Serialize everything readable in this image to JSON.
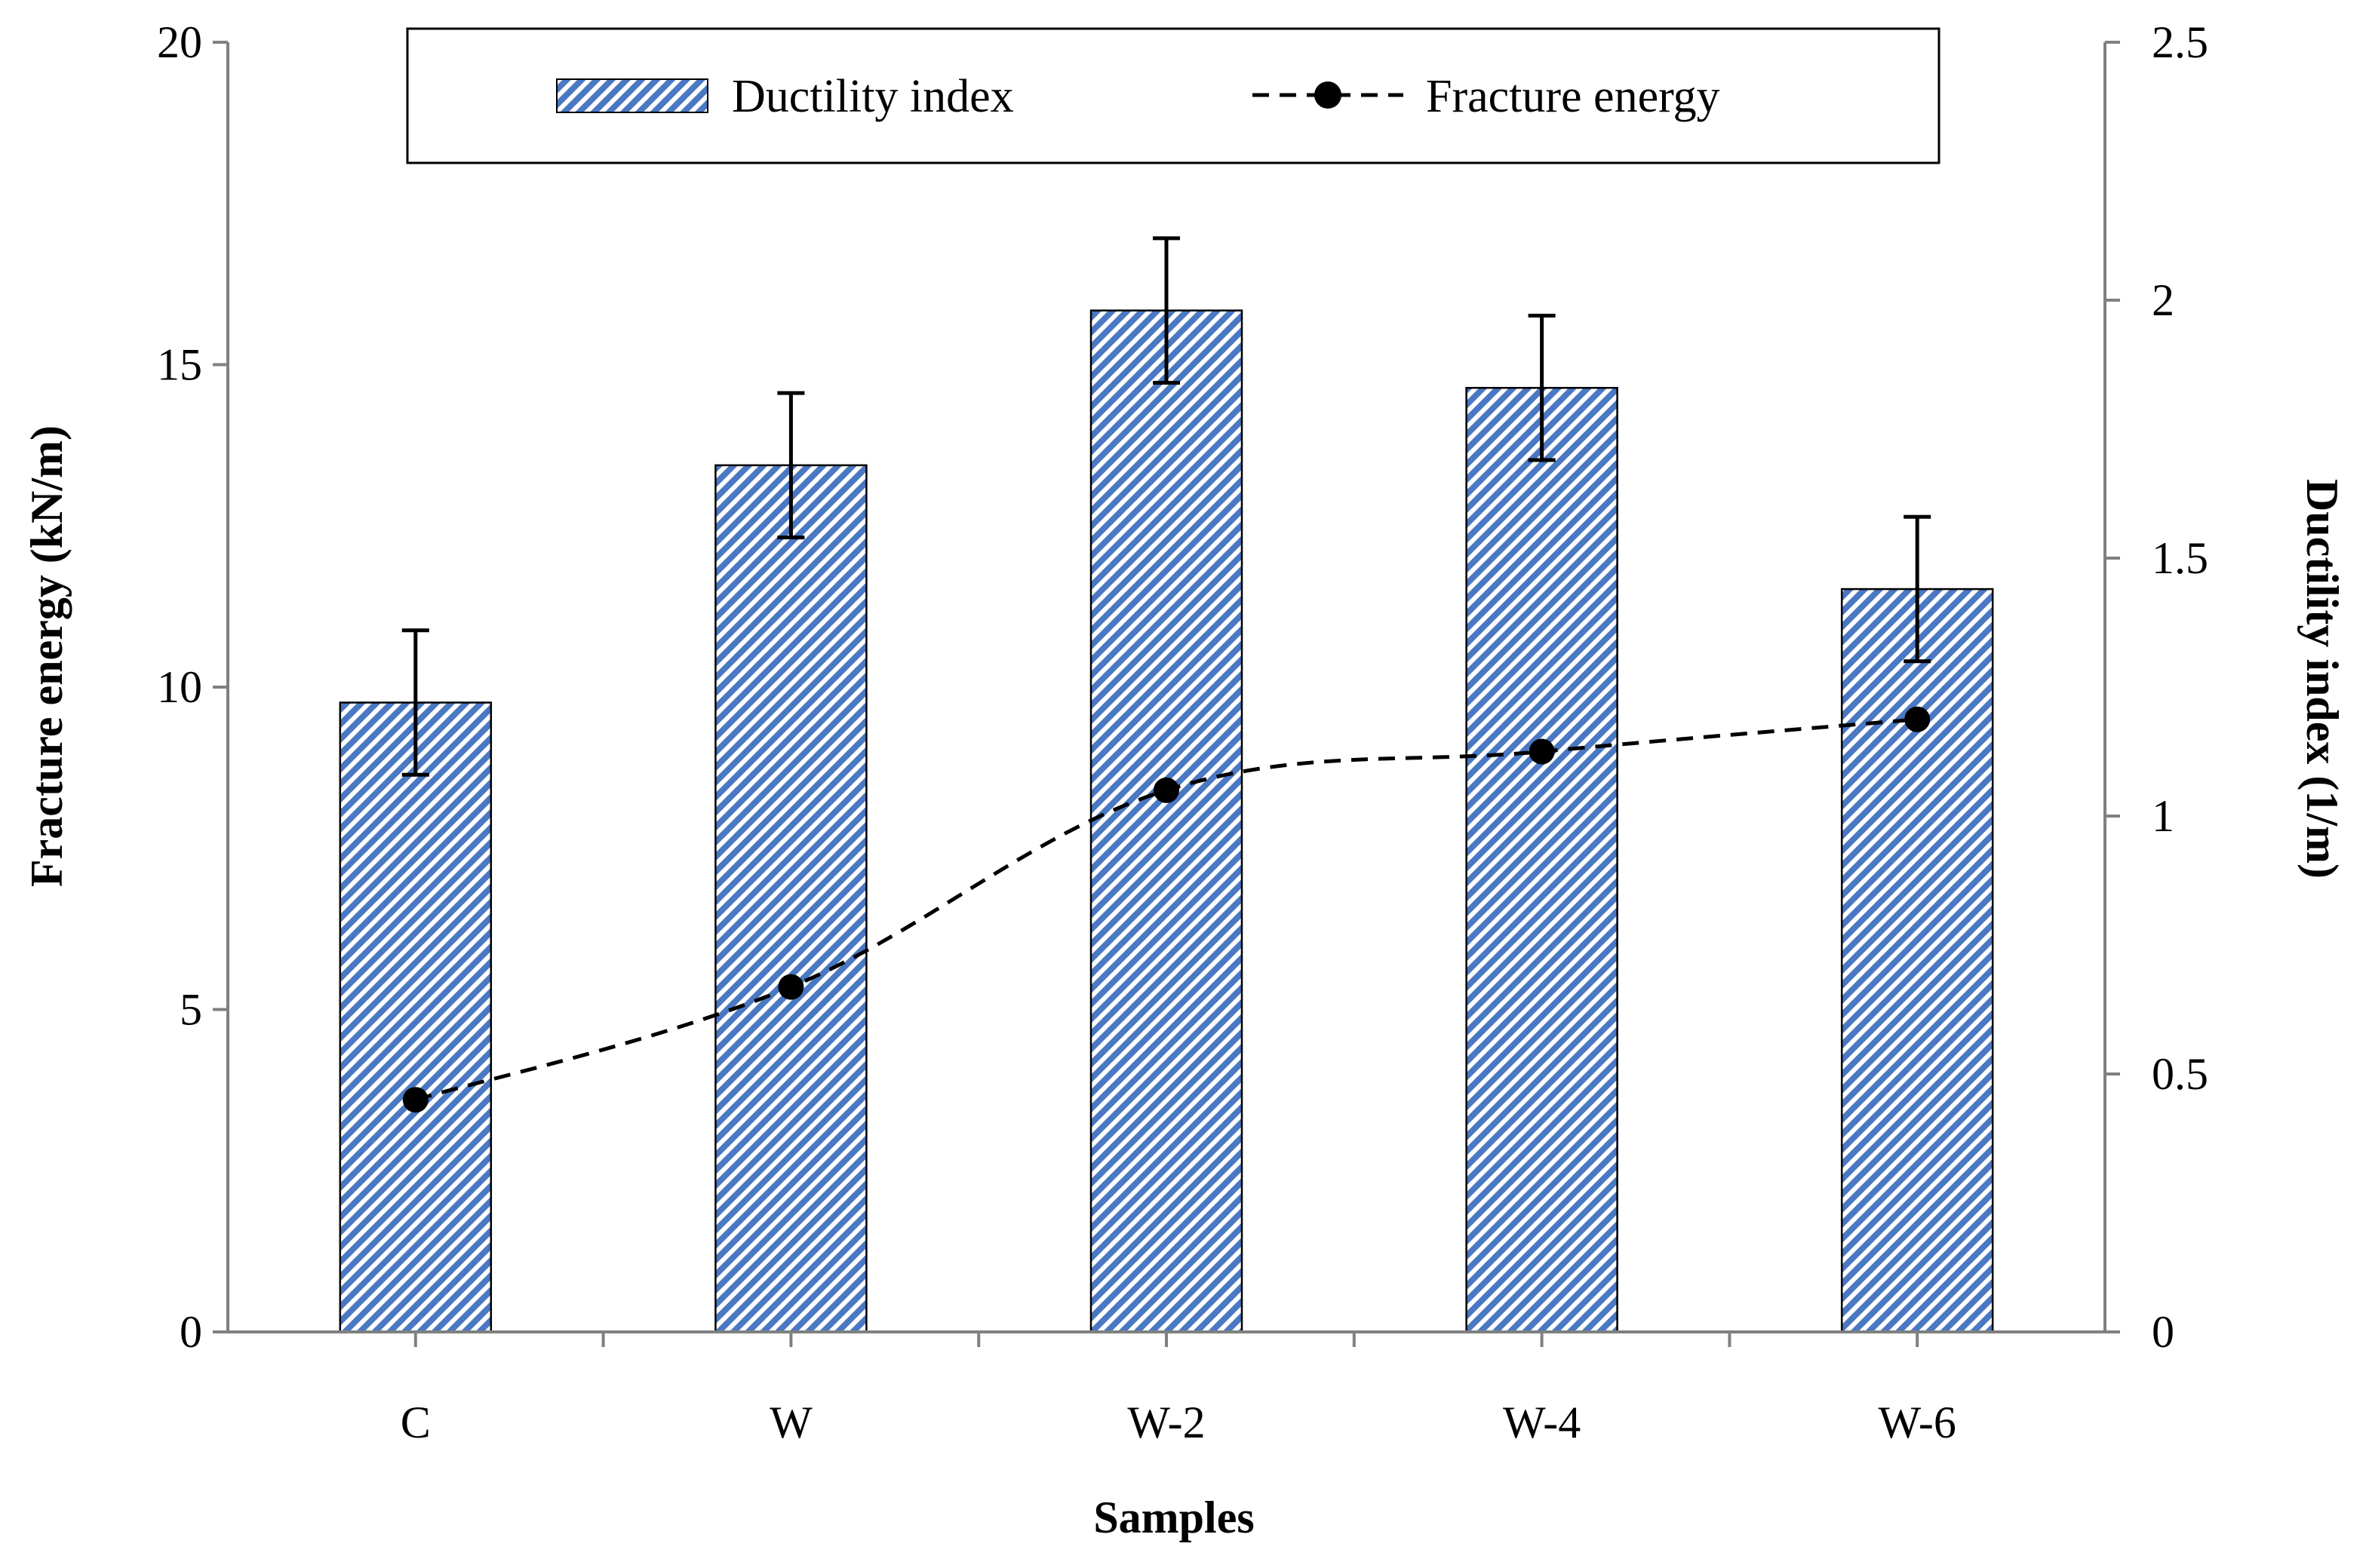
{
  "chart_data": {
    "type": "bar",
    "categories": [
      "C",
      "W",
      "W-2",
      "W-4",
      "W-6"
    ],
    "xlabel": "Samples",
    "ylabel_left": "Fracture energy (kN/m)",
    "ylabel_right": "Ductility index (1/m)",
    "ylim_left": [
      0,
      20
    ],
    "ylim_right": [
      0,
      2.5
    ],
    "yticks_left": [
      "0",
      "5",
      "10",
      "15",
      "20"
    ],
    "yticks_right": [
      "0",
      "0.5",
      "1",
      "1.5",
      "2",
      "2.5"
    ],
    "grid": false,
    "legend_position": "top-center",
    "series": [
      {
        "name": "Ductility index",
        "kind": "bar",
        "axis": "right",
        "values": [
          1.22,
          1.68,
          1.98,
          1.83,
          1.44
        ],
        "error": [
          0.14,
          0.14,
          0.14,
          0.14,
          0.14
        ],
        "color": "#4a78c2"
      },
      {
        "name": "Fracture energy",
        "kind": "line",
        "axis": "left",
        "line_style": "dashed",
        "marker": "circle",
        "values": [
          3.6,
          5.35,
          8.4,
          9.0,
          9.5
        ],
        "color": "#000000"
      }
    ]
  }
}
